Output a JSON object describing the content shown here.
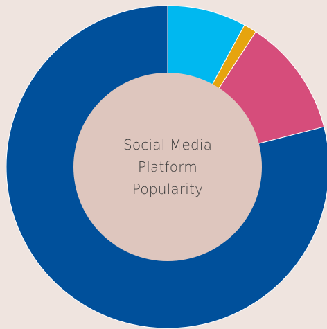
{
  "chart_data": {
    "type": "pie",
    "variant": "donut",
    "title_lines": [
      "Social Media",
      "Platform",
      "Popularity"
    ],
    "slices": [
      {
        "value": 7.9,
        "color": "#00b8f0"
      },
      {
        "value": 1.3,
        "color": "#e6a40f"
      },
      {
        "value": 11.8,
        "color": "#d64d7b"
      },
      {
        "value": 79.0,
        "color": "#00509b"
      }
    ],
    "inner_color": "#dec6be"
  }
}
